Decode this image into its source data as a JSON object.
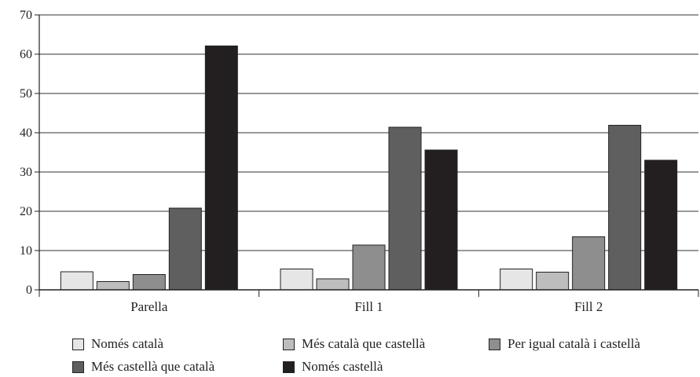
{
  "chart_data": {
    "type": "bar",
    "title": "",
    "xlabel": "",
    "ylabel": "",
    "ylim": [
      0,
      70
    ],
    "yticks": [
      0,
      10,
      20,
      30,
      40,
      50,
      60,
      70
    ],
    "grid": true,
    "legend_position": "bottom",
    "categories": [
      "Parella",
      "Fill 1",
      "Fill 2"
    ],
    "series": [
      {
        "name": "Només català",
        "color": "#e6e6e6",
        "values": [
          4.6,
          5.3,
          5.3
        ]
      },
      {
        "name": "Més català que castellà",
        "color": "#bdbdbd",
        "values": [
          2.1,
          2.8,
          4.5
        ]
      },
      {
        "name": "Per igual català i castellà",
        "color": "#8e8e8e",
        "values": [
          3.9,
          11.4,
          13.5
        ]
      },
      {
        "name": "Més castellà que català",
        "color": "#5f5f5f",
        "values": [
          20.8,
          41.4,
          41.9
        ]
      },
      {
        "name": "Només castellà",
        "color": "#231f20",
        "values": [
          62.1,
          35.6,
          33.0
        ]
      }
    ]
  }
}
